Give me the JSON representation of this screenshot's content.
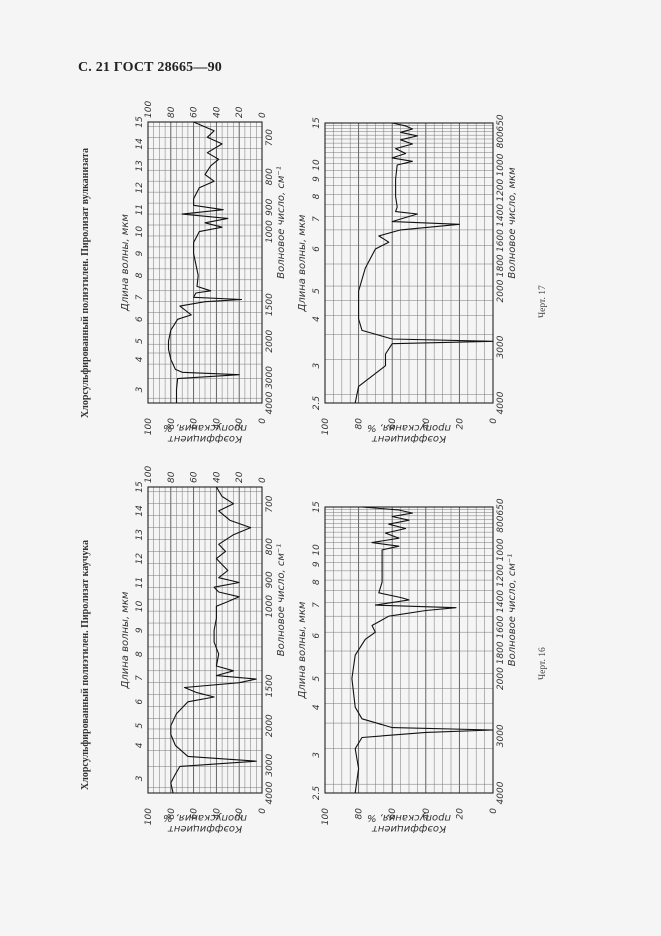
{
  "page": {
    "header": "С. 21 ГОСТ 28665—90"
  },
  "figures": [
    {
      "id": "fig17",
      "caption": "Хлорсульфированный полиэтилен. Пиролизат вулканизата",
      "figure_label": "Черт. 17"
    },
    {
      "id": "fig16",
      "caption": "Хлорсульфированный полиэтилен. Пиролизат каучука",
      "figure_label": "Черт. 16"
    }
  ],
  "axis_text": {
    "wavelength": "Длина волны, мкм",
    "wavenumber_a": "Волновое число, см⁻¹",
    "wavenumber_b": "Волновое число, мкм",
    "transmittance_line1": "Коэффициент",
    "transmittance_line2": "пропускания, %"
  },
  "chart_data": [
    {
      "type": "line",
      "title": "Хлорсульфированный полиэтилен. Пиролизат вулканизата (Черт. 17, верхний спектр)",
      "xlabel": "Длина волны, мкм / Волновое число, см⁻¹",
      "ylabel": "Коэффициент пропускания, %",
      "x_ticks_um": [
        3,
        4,
        5,
        6,
        7,
        8,
        9,
        10,
        11,
        12,
        13,
        14,
        15
      ],
      "x_ticks_cm": [
        4000,
        3000,
        2000,
        1500,
        1000,
        900,
        800,
        700
      ],
      "y_ticks": [
        0,
        20,
        40,
        60,
        80,
        100
      ],
      "xlim_um": [
        2.7,
        15
      ],
      "ylim": [
        0,
        100
      ],
      "grid": true,
      "x": [
        2.7,
        3.0,
        3.3,
        3.42,
        3.5,
        3.6,
        4.0,
        4.5,
        5.0,
        5.5,
        6.0,
        6.2,
        6.4,
        6.6,
        6.8,
        6.9,
        7.0,
        7.2,
        7.3,
        7.5,
        8.0,
        8.5,
        9.0,
        9.5,
        10.0,
        10.2,
        10.4,
        10.6,
        10.8,
        11.0,
        11.2,
        11.5,
        12.0,
        12.3,
        12.6,
        13.0,
        13.3,
        13.6,
        14.0,
        14.3,
        14.6,
        15.0
      ],
      "values": [
        75,
        75,
        74,
        20,
        70,
        76,
        80,
        82,
        82,
        80,
        74,
        62,
        67,
        72,
        50,
        18,
        60,
        58,
        45,
        57,
        56,
        58,
        60,
        60,
        55,
        35,
        50,
        30,
        70,
        34,
        60,
        60,
        55,
        42,
        50,
        45,
        38,
        48,
        35,
        48,
        42,
        60
      ]
    },
    {
      "type": "line",
      "title": "Хлорсульфированный полиэтилен. Пиролизат вулканизата (Черт. 17, нижний спектр)",
      "xlabel": "Длина волны, мкм / Волновое число, мкм",
      "ylabel": "Коэффициент пропускания, %",
      "x_ticks_um": [
        2.5,
        3,
        4,
        5,
        6,
        7,
        8,
        9,
        10,
        15
      ],
      "x_ticks_cm": [
        4000,
        3000,
        2000,
        1800,
        1600,
        1400,
        1200,
        1000,
        800,
        650
      ],
      "y_ticks": [
        0,
        20,
        40,
        60,
        80,
        100
      ],
      "xlim_um": [
        2.5,
        15
      ],
      "ylim": [
        0,
        100
      ],
      "grid": true,
      "x": [
        2.5,
        2.7,
        3.0,
        3.2,
        3.4,
        3.45,
        3.5,
        3.7,
        4.0,
        5.0,
        5.5,
        6.0,
        6.2,
        6.4,
        6.6,
        6.8,
        6.9,
        7.0,
        7.2,
        7.3,
        7.5,
        8.0,
        9.0,
        10.0,
        10.3,
        10.6,
        11.0,
        11.5,
        12.0,
        12.5,
        13.0,
        13.5,
        14.0,
        14.5,
        15.0
      ],
      "values": [
        82,
        80,
        64,
        64,
        60,
        0,
        60,
        78,
        80,
        80,
        76,
        70,
        62,
        68,
        55,
        20,
        60,
        55,
        45,
        58,
        57,
        58,
        58,
        57,
        48,
        60,
        52,
        58,
        48,
        55,
        45,
        55,
        48,
        52,
        60
      ]
    },
    {
      "type": "line",
      "title": "Хлорсульфированный полиэтилен. Пиролизат каучука (Черт. 16, верхний спектр)",
      "xlabel": "Длина волны, мкм / Волновое число, см⁻¹",
      "ylabel": "Коэффициент пропускания, %",
      "x_ticks_um": [
        3,
        4,
        5,
        6,
        7,
        8,
        9,
        10,
        11,
        12,
        13,
        14,
        15
      ],
      "x_ticks_cm": [
        4000,
        3000,
        2000,
        1500,
        1000,
        900,
        800,
        700
      ],
      "y_ticks": [
        0,
        20,
        40,
        60,
        80,
        100
      ],
      "xlim_um": [
        2.7,
        15
      ],
      "ylim": [
        0,
        100
      ],
      "grid": true,
      "x": [
        2.7,
        2.9,
        3.1,
        3.3,
        3.45,
        3.6,
        4.0,
        4.5,
        5.0,
        5.5,
        6.0,
        6.2,
        6.4,
        6.6,
        6.8,
        6.95,
        7.1,
        7.3,
        7.5,
        8.0,
        8.5,
        9.0,
        9.5,
        10.0,
        10.2,
        10.4,
        10.6,
        10.8,
        11.0,
        11.2,
        11.5,
        12.0,
        12.3,
        12.6,
        13.0,
        13.3,
        13.6,
        14.0,
        14.3,
        14.6,
        15.0
      ],
      "values": [
        78,
        80,
        76,
        72,
        5,
        65,
        76,
        80,
        80,
        75,
        65,
        42,
        58,
        68,
        20,
        5,
        40,
        25,
        40,
        38,
        42,
        42,
        40,
        40,
        30,
        20,
        38,
        42,
        20,
        38,
        30,
        40,
        32,
        38,
        25,
        10,
        28,
        38,
        25,
        35,
        40
      ]
    },
    {
      "type": "line",
      "title": "Хлорсульфированный полиэтилен. Пиролизат каучука (Черт. 16, нижний спектр)",
      "xlabel": "Длина волны, мкм / Волновое число, см⁻¹",
      "ylabel": "Коэффициент пропускания, %",
      "x_ticks_um": [
        2.5,
        3,
        4,
        5,
        6,
        7,
        8,
        9,
        10,
        15
      ],
      "x_ticks_cm": [
        4000,
        3000,
        2000,
        1800,
        1600,
        1400,
        1200,
        1000,
        800,
        650
      ],
      "y_ticks": [
        0,
        20,
        40,
        60,
        80,
        100
      ],
      "xlim_um": [
        2.5,
        15
      ],
      "ylim": [
        0,
        100
      ],
      "grid": true,
      "x": [
        2.5,
        2.8,
        3.1,
        3.3,
        3.4,
        3.45,
        3.5,
        3.7,
        4.0,
        5.0,
        5.5,
        5.9,
        6.1,
        6.3,
        6.6,
        6.8,
        6.9,
        7.0,
        7.2,
        7.3,
        7.5,
        8.0,
        9.0,
        10.0,
        10.3,
        10.6,
        11.0,
        11.5,
        12.0,
        12.5,
        13.0,
        13.5,
        14.0,
        14.5,
        15.0
      ],
      "values": [
        82,
        80,
        82,
        78,
        40,
        0,
        60,
        78,
        82,
        84,
        82,
        76,
        70,
        72,
        62,
        40,
        22,
        70,
        50,
        55,
        68,
        66,
        66,
        66,
        56,
        72,
        56,
        64,
        52,
        62,
        50,
        60,
        48,
        56,
        78
      ]
    }
  ]
}
